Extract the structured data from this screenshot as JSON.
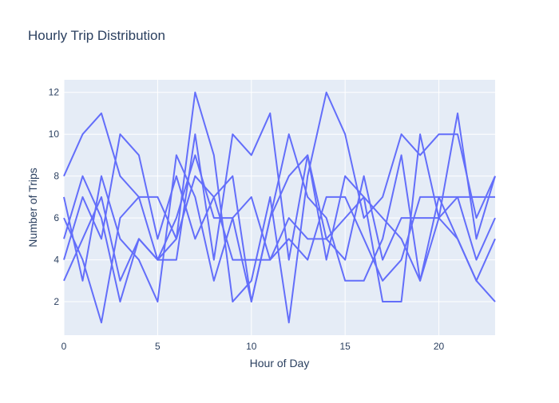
{
  "chart_data": {
    "type": "line",
    "title": "Hourly Trip Distribution",
    "xlabel": "Hour of Day",
    "ylabel": "Number of Trips",
    "xlim": [
      0,
      23
    ],
    "ylim": [
      0.4,
      12.6
    ],
    "xticks": [
      0,
      5,
      10,
      15,
      20
    ],
    "yticks": [
      2,
      4,
      6,
      8,
      10,
      12
    ],
    "grid": true,
    "legend": "none",
    "colors": {
      "line": "#636efa",
      "plot_bg": "#e5ecf6",
      "grid": "#ffffff",
      "text": "#2a3f5f"
    },
    "x": [
      0,
      1,
      2,
      3,
      4,
      5,
      6,
      7,
      8,
      9,
      10,
      11,
      12,
      13,
      14,
      15,
      16,
      17,
      18,
      19,
      20,
      21,
      22,
      23
    ],
    "series": [
      {
        "values": [
          8,
          10,
          11,
          8,
          7,
          7,
          5,
          12,
          9,
          2,
          3,
          7,
          1,
          8,
          12,
          10,
          6,
          7,
          10,
          9,
          10,
          10,
          6,
          8
        ]
      },
      {
        "values": [
          3,
          5,
          7,
          3,
          5,
          4,
          4,
          10,
          4,
          10,
          9,
          11,
          4,
          9,
          4,
          8,
          7,
          2,
          2,
          10,
          6,
          11,
          5,
          8
        ]
      },
      {
        "values": [
          7,
          3,
          8,
          5,
          4,
          2,
          9,
          7,
          3,
          6,
          2,
          6,
          10,
          7,
          6,
          3,
          3,
          5,
          9,
          3,
          7,
          5,
          3,
          2
        ]
      },
      {
        "values": [
          5,
          8,
          6,
          2,
          5,
          4,
          5,
          8,
          7,
          8,
          2,
          6,
          8,
          9,
          5,
          4,
          8,
          4,
          6,
          6,
          6,
          7,
          4,
          6
        ]
      },
      {
        "values": [
          6,
          4,
          1,
          6,
          7,
          4,
          6,
          9,
          6,
          6,
          7,
          4,
          6,
          5,
          5,
          6,
          7,
          6,
          5,
          3,
          6,
          5,
          3,
          5
        ]
      },
      {
        "values": [
          4,
          7,
          5,
          10,
          9,
          5,
          8,
          5,
          7,
          4,
          4,
          4,
          5,
          4,
          7,
          7,
          5,
          3,
          4,
          7,
          7,
          7,
          7,
          7
        ]
      }
    ]
  }
}
